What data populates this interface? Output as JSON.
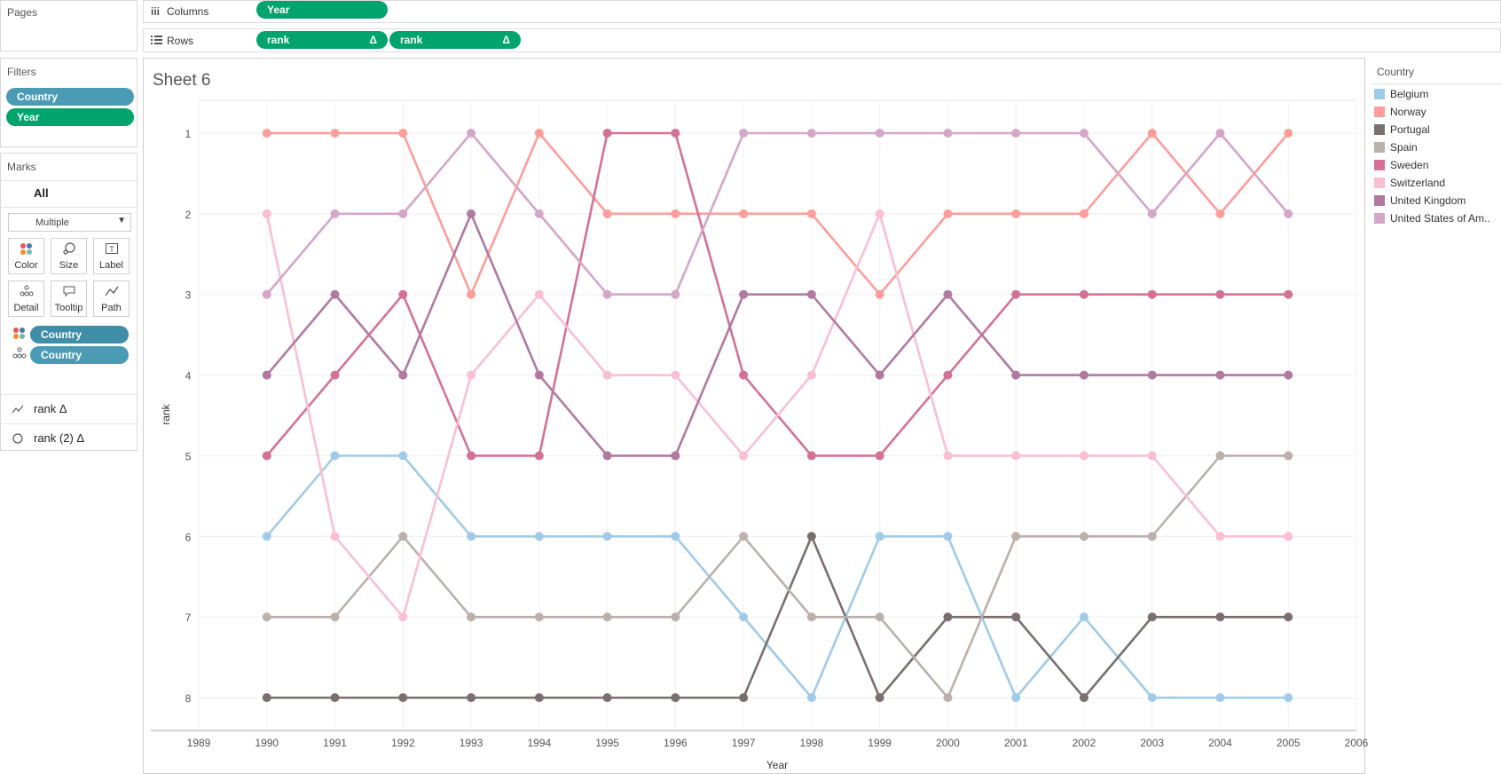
{
  "pages": {
    "title": "Pages"
  },
  "shelves": {
    "columns_label": "Columns",
    "columns_pill": "Year",
    "rows_label": "Rows",
    "rows_pills": [
      "rank",
      "rank"
    ],
    "delta_glyph": "Δ"
  },
  "filters": {
    "title": "Filters",
    "pills": [
      "Country",
      "Year"
    ]
  },
  "marks": {
    "title": "Marks",
    "all_label": "All",
    "mark_type": "Multiple",
    "buttons": [
      {
        "label": "Color",
        "icon": "color-dots-icon"
      },
      {
        "label": "Size",
        "icon": "size-icon"
      },
      {
        "label": "Label",
        "icon": "label-icon"
      },
      {
        "label": "Detail",
        "icon": "detail-icon"
      },
      {
        "label": "Tooltip",
        "icon": "tooltip-icon"
      },
      {
        "label": "Path",
        "icon": "path-icon"
      }
    ],
    "fields": [
      "Country",
      "Country"
    ],
    "measures": [
      "rank Δ",
      "rank (2) Δ"
    ]
  },
  "sheet": {
    "title": "Sheet 6"
  },
  "legend": {
    "title": "Country"
  },
  "chart_data": {
    "type": "line",
    "xlabel": "Year",
    "ylabel": "rank",
    "x": [
      1990,
      1991,
      1992,
      1993,
      1994,
      1995,
      1996,
      1997,
      1998,
      1999,
      2000,
      2001,
      2002,
      2003,
      2004,
      2005
    ],
    "xticks": [
      1989,
      1990,
      1991,
      1992,
      1993,
      1994,
      1995,
      1996,
      1997,
      1998,
      1999,
      2000,
      2001,
      2002,
      2003,
      2004,
      2005,
      2006
    ],
    "xlim": [
      1989,
      2006
    ],
    "yticks": [
      1,
      2,
      3,
      4,
      5,
      6,
      7,
      8
    ],
    "ylim": [
      1,
      8
    ],
    "y_reversed": true,
    "grid": true,
    "legend_position": "right",
    "series": [
      {
        "name": "Belgium",
        "color": "#a0cbe8",
        "values": [
          6,
          5,
          5,
          6,
          6,
          6,
          6,
          7,
          8,
          6,
          6,
          8,
          7,
          8,
          8,
          8
        ]
      },
      {
        "name": "Norway",
        "color": "#ff9d9a",
        "values": [
          1,
          1,
          1,
          3,
          1,
          2,
          2,
          2,
          2,
          3,
          2,
          2,
          2,
          1,
          2,
          1
        ]
      },
      {
        "name": "Portugal",
        "color": "#79706e",
        "values": [
          8,
          8,
          8,
          8,
          8,
          8,
          8,
          8,
          6,
          8,
          7,
          7,
          8,
          7,
          7,
          7
        ]
      },
      {
        "name": "Spain",
        "color": "#bab0ac",
        "values": [
          7,
          7,
          6,
          7,
          7,
          7,
          7,
          6,
          7,
          7,
          8,
          6,
          6,
          6,
          5,
          5
        ]
      },
      {
        "name": "Sweden",
        "color": "#d37295",
        "values": [
          5,
          4,
          3,
          5,
          5,
          1,
          1,
          4,
          5,
          5,
          4,
          3,
          3,
          3,
          3,
          3
        ]
      },
      {
        "name": "Switzerland",
        "color": "#fabfd2",
        "values": [
          2,
          6,
          7,
          4,
          3,
          4,
          4,
          5,
          4,
          2,
          5,
          5,
          5,
          5,
          6,
          6
        ]
      },
      {
        "name": "United Kingdom",
        "color": "#b07aa1",
        "values": [
          4,
          3,
          4,
          2,
          4,
          5,
          5,
          3,
          3,
          4,
          3,
          4,
          4,
          4,
          4,
          4
        ]
      },
      {
        "name": "United States of Am..",
        "color": "#d4a6c8",
        "values": [
          3,
          2,
          2,
          1,
          2,
          3,
          3,
          1,
          1,
          1,
          1,
          1,
          1,
          2,
          1,
          2
        ]
      }
    ]
  }
}
